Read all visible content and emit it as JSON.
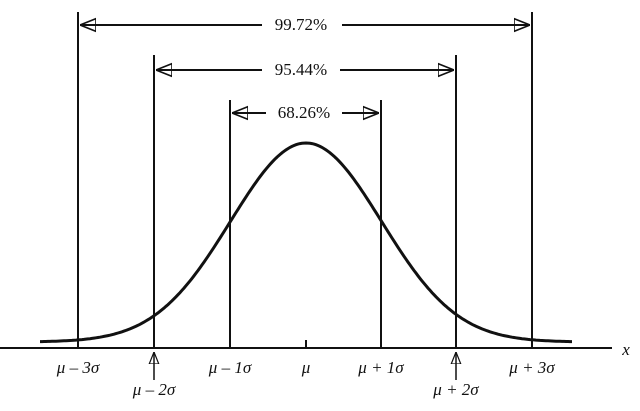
{
  "axis": {
    "label": "x"
  },
  "ticks": [
    {
      "label": "μ – 3σ"
    },
    {
      "label": "μ – 2σ"
    },
    {
      "label": "μ – 1σ"
    },
    {
      "label": "μ"
    },
    {
      "label": "μ + 1σ"
    },
    {
      "label": "μ + 2σ"
    },
    {
      "label": "μ + 3σ"
    }
  ],
  "ranges": [
    {
      "label": "99.72%"
    },
    {
      "label": "95.44%"
    },
    {
      "label": "68.26%"
    }
  ]
}
